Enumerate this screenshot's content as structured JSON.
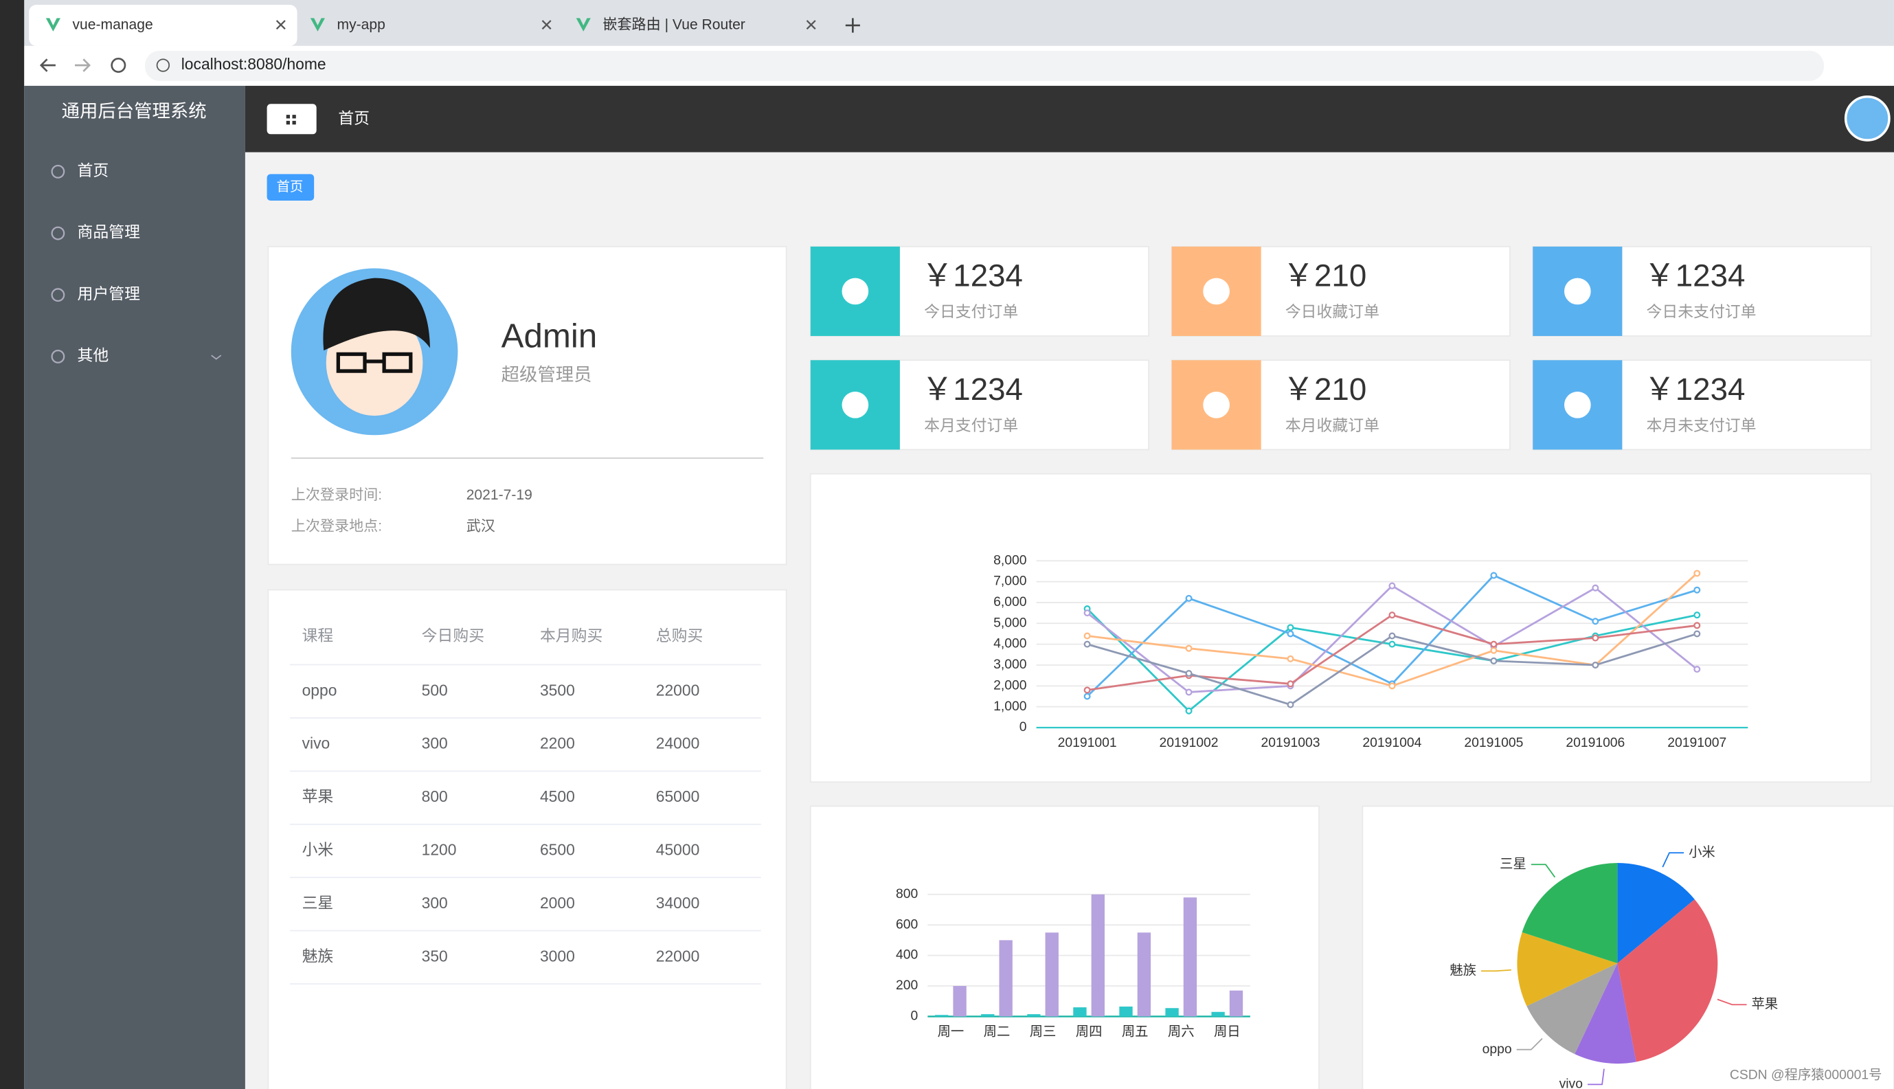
{
  "browser": {
    "tabs": [
      "vue-manage",
      "my-app",
      "嵌套路由 | Vue Router"
    ],
    "url": "localhost:8080/home"
  },
  "sidebar": {
    "title": "通用后台管理系统",
    "menu": [
      "首页",
      "商品管理",
      "用户管理",
      "其他"
    ]
  },
  "header": {
    "title": "首页"
  },
  "breadcrumb": "首页",
  "user": {
    "name": "Admin",
    "role": "超级管理员",
    "info": [
      [
        "上次登录时间:",
        "2021-7-19"
      ],
      [
        "上次登录地点:",
        "武汉"
      ]
    ]
  },
  "table": {
    "headers": [
      "课程",
      "今日购买",
      "本月购买",
      "总购买"
    ],
    "rows": [
      [
        "oppo",
        500,
        3500,
        22000
      ],
      [
        "vivo",
        300,
        2200,
        24000
      ],
      [
        "苹果",
        800,
        4500,
        65000
      ],
      [
        "小米",
        1200,
        6500,
        45000
      ],
      [
        "三星",
        300,
        2000,
        34000
      ],
      [
        "魅族",
        350,
        3000,
        22000
      ]
    ]
  },
  "stats": [
    {
      "value": "￥1234",
      "label": "今日支付订单",
      "color": "#2ec7c9"
    },
    {
      "value": "￥210",
      "label": "今日收藏订单",
      "color": "#ffb980"
    },
    {
      "value": "￥1234",
      "label": "今日未支付订单",
      "color": "#5ab1ef"
    },
    {
      "value": "￥1234",
      "label": "本月支付订单",
      "color": "#2ec7c9"
    },
    {
      "value": "￥210",
      "label": "本月收藏订单",
      "color": "#ffb980"
    },
    {
      "value": "￥1234",
      "label": "本月未支付订单",
      "color": "#5ab1ef"
    }
  ],
  "chart_data": [
    {
      "type": "line",
      "categories": [
        "20191001",
        "20191002",
        "20191003",
        "20191004",
        "20191005",
        "20191006",
        "20191007"
      ],
      "ylim": [
        0,
        8000
      ],
      "yticks": [
        0,
        {
          "value": 1000,
          "label": "1,000"
        },
        {
          "value": 2000,
          "label": "2,000"
        },
        {
          "value": 3000,
          "label": "3,000"
        },
        {
          "value": 4000,
          "label": "4,000"
        },
        {
          "value": 5000,
          "label": "5,000"
        },
        {
          "value": 6000,
          "label": "6,000"
        },
        {
          "value": 7000,
          "label": "7,000"
        },
        {
          "value": 8000,
          "label": "8,000"
        }
      ],
      "grid": true,
      "series": [
        {
          "color": "#2ec7c9",
          "values": [
            5700,
            800,
            4800,
            4000,
            3200,
            4400,
            5400
          ]
        },
        {
          "color": "#5ab1ef",
          "values": [
            1500,
            6200,
            4500,
            2100,
            7300,
            5100,
            6600
          ]
        },
        {
          "color": "#b6a2de",
          "values": [
            5500,
            1700,
            2000,
            6800,
            3900,
            6700,
            2800
          ]
        },
        {
          "color": "#ffb980",
          "values": [
            4400,
            3800,
            3300,
            2000,
            3700,
            3000,
            7400
          ]
        },
        {
          "color": "#d87a80",
          "values": [
            1800,
            2500,
            2100,
            5400,
            4000,
            4300,
            4900
          ]
        },
        {
          "color": "#8d98b3",
          "values": [
            4000,
            2600,
            1100,
            4400,
            3200,
            3000,
            4500
          ]
        }
      ]
    },
    {
      "type": "bar",
      "categories": [
        "周一",
        "周二",
        "周三",
        "周四",
        "周五",
        "周六",
        "周日"
      ],
      "ylim": [
        0,
        800
      ],
      "yticks": [
        0,
        200,
        400,
        600,
        800
      ],
      "grid": true,
      "series": [
        {
          "color": "#2ec7c9",
          "values": [
            10,
            15,
            15,
            60,
            65,
            55,
            30
          ]
        },
        {
          "color": "#b6a2de",
          "values": [
            200,
            500,
            550,
            800,
            550,
            780,
            170
          ]
        }
      ]
    },
    {
      "type": "pie",
      "categories": [
        "小米",
        "苹果",
        "vivo",
        "oppo",
        "魅族",
        "三星"
      ],
      "values": [
        14,
        33,
        10,
        11,
        12,
        20
      ],
      "colors": [
        "#0f77f0",
        "#e85d6a",
        "#9a6ee0",
        "#a5a5a5",
        "#e6b422",
        "#2db55d"
      ]
    }
  ],
  "watermark": "CSDN @程序猿000001号"
}
